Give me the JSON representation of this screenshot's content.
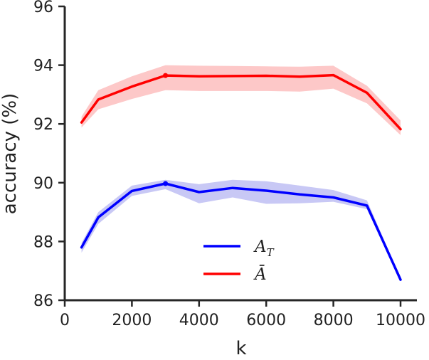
{
  "chart_data": {
    "type": "line",
    "xlabel": "k",
    "ylabel": "accuracy (%)",
    "xlim": [
      0,
      10500
    ],
    "ylim": [
      86,
      96
    ],
    "xticks": [
      0,
      2000,
      4000,
      6000,
      8000,
      10000
    ],
    "yticks": [
      86,
      88,
      90,
      92,
      94,
      96
    ],
    "grid": false,
    "legend_position": "lower-center",
    "x": [
      500,
      1000,
      2000,
      3000,
      4000,
      5000,
      6000,
      7000,
      8000,
      9000,
      10000
    ],
    "series": [
      {
        "name": "A_T",
        "legend_main": "A",
        "legend_sub": "T",
        "color": "#0000ff",
        "band_color": "#c8c8f5",
        "values": [
          87.8,
          88.82,
          89.72,
          89.97,
          89.68,
          89.82,
          89.73,
          89.6,
          89.5,
          89.22,
          86.7
        ],
        "lower": [
          87.62,
          88.6,
          89.55,
          89.78,
          89.3,
          89.5,
          89.28,
          89.3,
          89.35,
          89.1,
          86.65
        ],
        "upper": [
          87.95,
          89.0,
          89.9,
          90.1,
          89.95,
          90.1,
          90.05,
          89.9,
          89.75,
          89.4,
          86.75
        ],
        "marker_at": 3000
      },
      {
        "name": "Ā",
        "legend_main": "Ā",
        "legend_sub": "",
        "color": "#ff0000",
        "band_color": "#fdc8c8",
        "values": [
          92.05,
          92.83,
          93.27,
          93.65,
          93.62,
          93.63,
          93.64,
          93.61,
          93.66,
          93.06,
          91.82
        ],
        "lower": [
          91.88,
          92.5,
          92.85,
          93.15,
          93.12,
          93.12,
          93.12,
          93.1,
          93.2,
          92.7,
          91.62
        ],
        "upper": [
          92.25,
          93.15,
          93.62,
          94.0,
          93.98,
          93.97,
          93.96,
          93.95,
          93.98,
          93.3,
          92.12
        ],
        "marker_at": 3000
      }
    ]
  }
}
